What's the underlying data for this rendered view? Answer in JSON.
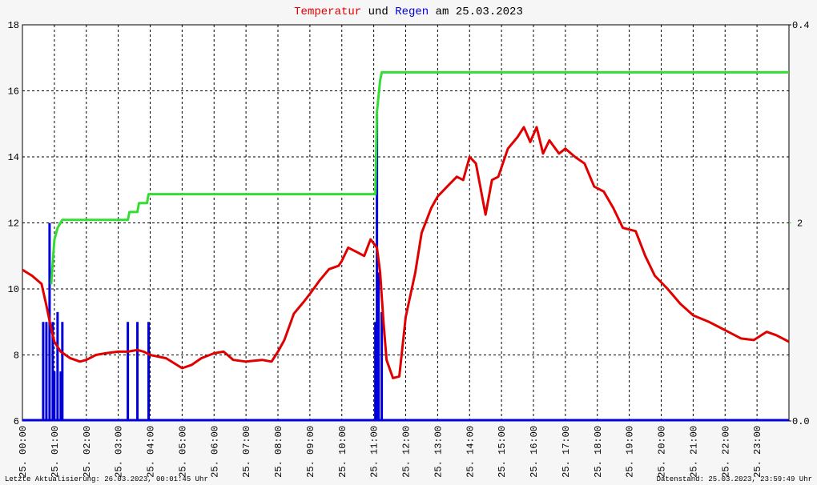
{
  "chart_data": {
    "type": "line",
    "title": [
      "Temperatur",
      "und",
      "Regen",
      "am 25.03.2023"
    ],
    "xlim": [
      0,
      24
    ],
    "xticks": [
      {
        "value": 0,
        "label": "25. 00:00"
      },
      {
        "value": 1,
        "label": "25. 01:00"
      },
      {
        "value": 2,
        "label": "25. 02:00"
      },
      {
        "value": 3,
        "label": "25. 03:00"
      },
      {
        "value": 4,
        "label": "25. 04:00"
      },
      {
        "value": 5,
        "label": "25. 05:00"
      },
      {
        "value": 6,
        "label": "25. 06:00"
      },
      {
        "value": 7,
        "label": "25. 07:00"
      },
      {
        "value": 8,
        "label": "25. 08:00"
      },
      {
        "value": 9,
        "label": "25. 09:00"
      },
      {
        "value": 10,
        "label": "25. 10:00"
      },
      {
        "value": 11,
        "label": "25. 11:00"
      },
      {
        "value": 12,
        "label": "25. 12:00"
      },
      {
        "value": 13,
        "label": "25. 13:00"
      },
      {
        "value": 14,
        "label": "25. 14:00"
      },
      {
        "value": 15,
        "label": "25. 15:00"
      },
      {
        "value": 16,
        "label": "25. 16:00"
      },
      {
        "value": 17,
        "label": "25. 17:00"
      },
      {
        "value": 18,
        "label": "25. 18:00"
      },
      {
        "value": 19,
        "label": "25. 19:00"
      },
      {
        "value": 20,
        "label": "25. 20:00"
      },
      {
        "value": 21,
        "label": "25. 21:00"
      },
      {
        "value": 22,
        "label": "25. 22:00"
      },
      {
        "value": 23,
        "label": "25. 23:00"
      }
    ],
    "ylim": [
      6,
      18
    ],
    "yticks": [
      6,
      8,
      10,
      12,
      14,
      16,
      18
    ],
    "y2lim": [
      0,
      0.4
    ],
    "y2ticks": [
      {
        "value": 0,
        "label": "0.0"
      },
      {
        "value": 0.4,
        "label": "0.4"
      }
    ],
    "y3lim": [
      0,
      4
    ],
    "y3ticks": [
      2
    ],
    "grid": true,
    "series": [
      {
        "name": "Temperatur",
        "color": "#e00000",
        "type": "line",
        "x": [
          0,
          0.3,
          0.6,
          0.75,
          0.9,
          1.0,
          1.2,
          1.5,
          1.8,
          2.0,
          2.3,
          2.6,
          3.0,
          3.3,
          3.6,
          3.8,
          4.0,
          4.5,
          5.0,
          5.3,
          5.6,
          6.0,
          6.3,
          6.6,
          7.0,
          7.5,
          7.8,
          8.0,
          8.2,
          8.5,
          8.8,
          9.0,
          9.3,
          9.6,
          9.9,
          10.0,
          10.2,
          10.5,
          10.7,
          10.9,
          11.1,
          11.2,
          11.3,
          11.4,
          11.6,
          11.8,
          12.0,
          12.3,
          12.5,
          12.8,
          13.0,
          13.3,
          13.6,
          13.8,
          14.0,
          14.2,
          14.5,
          14.7,
          14.9,
          15.2,
          15.5,
          15.7,
          15.9,
          16.1,
          16.3,
          16.5,
          16.8,
          17.0,
          17.3,
          17.6,
          17.9,
          18.2,
          18.5,
          18.8,
          19.2,
          19.5,
          19.8,
          20.2,
          20.6,
          21.0,
          21.5,
          22.0,
          22.5,
          22.9,
          23.3,
          23.6,
          24.0
        ],
        "values": [
          10.58,
          10.4,
          10.15,
          9.5,
          8.8,
          8.4,
          8.1,
          7.9,
          7.8,
          7.85,
          8.0,
          8.05,
          8.1,
          8.1,
          8.15,
          8.1,
          8.0,
          7.9,
          7.6,
          7.7,
          7.9,
          8.05,
          8.1,
          7.85,
          7.8,
          7.85,
          7.8,
          8.1,
          8.45,
          9.25,
          9.6,
          9.85,
          10.25,
          10.6,
          10.7,
          10.85,
          11.25,
          11.1,
          11.0,
          11.5,
          11.25,
          10.5,
          9.05,
          7.85,
          7.3,
          7.35,
          9.15,
          10.5,
          11.7,
          12.45,
          12.8,
          13.1,
          13.4,
          13.3,
          14.0,
          13.8,
          12.25,
          13.3,
          13.4,
          14.25,
          14.6,
          14.9,
          14.45,
          14.9,
          14.1,
          14.5,
          14.1,
          14.25,
          14.0,
          13.8,
          13.1,
          12.95,
          12.45,
          11.85,
          11.75,
          11.0,
          10.4,
          10.0,
          9.55,
          9.2,
          9.0,
          8.75,
          8.5,
          8.45,
          8.7,
          8.6,
          8.4
        ]
      },
      {
        "name": "Regen",
        "color": "#0000dd",
        "type": "bar",
        "axis": "y2",
        "x": [
          0.65,
          0.75,
          0.85,
          0.95,
          1.0,
          1.1,
          1.2,
          1.25,
          3.3,
          3.6,
          3.95,
          11.05,
          11.1,
          11.15,
          11.25
        ],
        "values": [
          0.1,
          0.1,
          0.2,
          0.1,
          0.05,
          0.11,
          0.05,
          0.1,
          0.1,
          0.1,
          0.1,
          0.1,
          0.31,
          0.15,
          0.11
        ]
      },
      {
        "color": "#33dd33",
        "type": "line",
        "axis": "y3",
        "x": [
          0.9,
          1.0,
          1.1,
          1.25,
          3.3,
          3.35,
          3.6,
          3.65,
          3.9,
          3.95,
          11.05,
          11.1,
          11.2,
          11.25,
          24
        ],
        "values": [
          1.38,
          1.83,
          1.95,
          2.03,
          2.03,
          2.11,
          2.11,
          2.2,
          2.2,
          2.29,
          2.29,
          3.12,
          3.44,
          3.52,
          3.52
        ]
      }
    ],
    "footer_left": "Letzte Aktualisierung: 26.03.2023, 00:01:45 Uhr",
    "footer_right": "Datenstand: 25.03.2023, 23:59:49 Uhr"
  }
}
